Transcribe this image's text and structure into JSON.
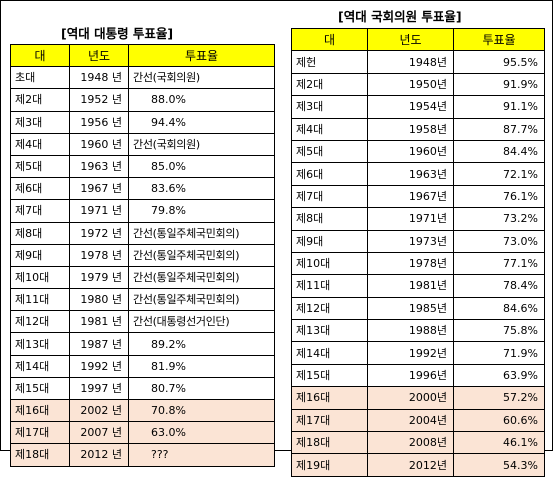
{
  "left": {
    "title": "[역대 대통령 투표율]",
    "headers": [
      "대",
      "년도",
      "투표율"
    ],
    "rows": [
      [
        "초대",
        "1948 년",
        "간선(국회의원)"
      ],
      [
        "제2대",
        "1952 년",
        "88.0%"
      ],
      [
        "제3대",
        "1956 년",
        "94.4%"
      ],
      [
        "제4대",
        "1960 년",
        "간선(국회의원)"
      ],
      [
        "제5대",
        "1963 년",
        "85.0%"
      ],
      [
        "제6대",
        "1967 년",
        "83.6%"
      ],
      [
        "제7대",
        "1971 년",
        "79.8%"
      ],
      [
        "제8대",
        "1972 년",
        "간선(통일주체국민회의)"
      ],
      [
        "제9대",
        "1978 년",
        "간선(통일주체국민회의)"
      ],
      [
        "제10대",
        "1979 년",
        "간선(통일주체국민회의)"
      ],
      [
        "제11대",
        "1980 년",
        "간선(통일주체국민회의)"
      ],
      [
        "제12대",
        "1981 년",
        "간선(대통령선거인단)"
      ],
      [
        "제13대",
        "1987 년",
        "89.2%"
      ],
      [
        "제14대",
        "1992 년",
        "81.9%"
      ],
      [
        "제15대",
        "1997 년",
        "80.7%"
      ],
      [
        "제16대",
        "2002 년",
        "70.8%"
      ],
      [
        "제17대",
        "2007 년",
        "63.0%"
      ],
      [
        "제18대",
        "2012 년",
        "???"
      ]
    ],
    "highlight_color": "#fbe4d5"
  },
  "right": {
    "title": "[역대 국회의원 투표율]",
    "headers": [
      "대",
      "년도",
      "투표율"
    ],
    "rows": [
      [
        "제헌",
        "1948년",
        "95.5%"
      ],
      [
        "제2대",
        "1950년",
        "91.9%"
      ],
      [
        "제3대",
        "1954년",
        "91.1%"
      ],
      [
        "제4대",
        "1958년",
        "87.7%"
      ],
      [
        "제5대",
        "1960년",
        "84.4%"
      ],
      [
        "제6대",
        "1963년",
        "72.1%"
      ],
      [
        "제7대",
        "1967년",
        "76.1%"
      ],
      [
        "제8대",
        "1971년",
        "73.2%"
      ],
      [
        "제9대",
        "1973년",
        "73.0%"
      ],
      [
        "제10대",
        "1978년",
        "77.1%"
      ],
      [
        "제11대",
        "1981년",
        "78.4%"
      ],
      [
        "제12대",
        "1985년",
        "84.6%"
      ],
      [
        "제13대",
        "1988년",
        "75.8%"
      ],
      [
        "제14대",
        "1992년",
        "71.9%"
      ],
      [
        "제15대",
        "1996년",
        "63.9%"
      ],
      [
        "제16대",
        "2000년",
        "57.2%"
      ],
      [
        "제17대",
        "2004년",
        "60.6%"
      ],
      [
        "제18대",
        "2008년",
        "46.1%"
      ],
      [
        "제19대",
        "2012년",
        "54.3%"
      ]
    ],
    "highlight_color": "#fbe4d5"
  },
  "header_color": "#ffff00"
}
